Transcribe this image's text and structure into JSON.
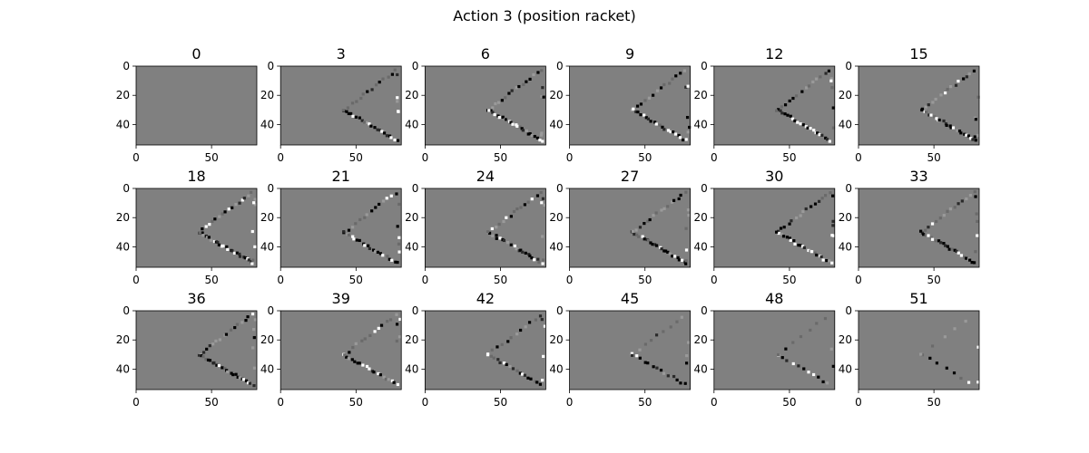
{
  "chart_data": {
    "type": "heatmap",
    "title": "Action 3 (position racket)",
    "colormap": "gray",
    "background_color": "#808080",
    "xlim": [
      0,
      80
    ],
    "ylim": [
      54,
      0
    ],
    "xticks": [
      0,
      50
    ],
    "yticks": [
      0,
      20,
      40
    ],
    "grid": false,
    "panels": [
      {
        "label": "0",
        "intensity": 0.0
      },
      {
        "label": "3",
        "intensity": 0.8
      },
      {
        "label": "6",
        "intensity": 0.9
      },
      {
        "label": "9",
        "intensity": 0.75
      },
      {
        "label": "12",
        "intensity": 0.8
      },
      {
        "label": "15",
        "intensity": 0.85
      },
      {
        "label": "18",
        "intensity": 0.95
      },
      {
        "label": "21",
        "intensity": 0.75
      },
      {
        "label": "24",
        "intensity": 0.85
      },
      {
        "label": "27",
        "intensity": 0.9
      },
      {
        "label": "30",
        "intensity": 0.85
      },
      {
        "label": "33",
        "intensity": 0.85
      },
      {
        "label": "36",
        "intensity": 0.9
      },
      {
        "label": "39",
        "intensity": 0.7
      },
      {
        "label": "42",
        "intensity": 0.65
      },
      {
        "label": "45",
        "intensity": 0.5
      },
      {
        "label": "48",
        "intensity": 0.4
      },
      {
        "label": "51",
        "intensity": 0.25
      }
    ]
  }
}
